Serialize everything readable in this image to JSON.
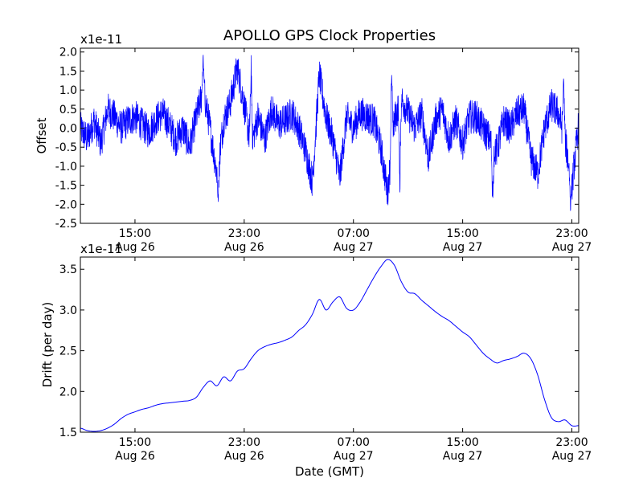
{
  "figure": {
    "title": "APOLLO GPS Clock Properties",
    "xlabel": "Date (GMT)"
  },
  "chart_data": [
    {
      "type": "line",
      "ylabel": "Offset",
      "scale_label": "x1e-11",
      "ylim": [
        -2.5,
        2.1
      ],
      "yticks": [
        -2.5,
        -2.0,
        -1.5,
        -1.0,
        -0.5,
        0.0,
        0.5,
        1.0,
        1.5,
        2.0
      ],
      "ytick_labels": [
        "-2.5",
        "-2.0",
        "-1.5",
        "-1.0",
        "-0.5",
        "0.0",
        "0.5",
        "1.0",
        "1.5",
        "2.0"
      ],
      "xlim": [
        "Aug 26 11:00",
        "Aug 27 23:30"
      ],
      "xtick_hours": [
        15,
        23,
        31,
        39,
        47
      ],
      "xticks": [
        {
          "time": "15:00",
          "date": "Aug 26"
        },
        {
          "time": "23:00",
          "date": "Aug 26"
        },
        {
          "time": "07:00",
          "date": "Aug 27"
        },
        {
          "time": "15:00",
          "date": "Aug 27"
        },
        {
          "time": "23:00",
          "date": "Aug 27"
        }
      ],
      "grid": false,
      "series": [
        {
          "color": "#0000ff",
          "style": "noisy",
          "x_hours": [
            11,
            11.5,
            12,
            12.5,
            13,
            13.5,
            14,
            14.5,
            15,
            15.5,
            16,
            16.5,
            17,
            17.5,
            18,
            18.5,
            19,
            19.5,
            20,
            20.5,
            21,
            21.5,
            22,
            22.5,
            23,
            23.5,
            24,
            24.5,
            25,
            25.5,
            26,
            26.5,
            27,
            27.5,
            28,
            28.5,
            29,
            29.5,
            30,
            30.5,
            31,
            31.5,
            32,
            32.5,
            33,
            33.5,
            34,
            34.5,
            35,
            35.5,
            36,
            36.5,
            37,
            37.5,
            38,
            38.5,
            39,
            39.5,
            40,
            40.5,
            41,
            41.5,
            42,
            42.5,
            43,
            43.5,
            44,
            44.5,
            45,
            45.5,
            46,
            46.5,
            47,
            47.5
          ],
          "values": [
            0.0,
            -0.3,
            0.2,
            -0.4,
            0.5,
            0.3,
            0.0,
            0.2,
            0.3,
            0.1,
            -0.1,
            0.2,
            0.4,
            0.1,
            -0.3,
            0.0,
            -0.5,
            0.3,
            1.0,
            0.0,
            -1.2,
            0.2,
            0.7,
            1.6,
            0.6,
            -0.5,
            0.3,
            -0.3,
            0.5,
            0.1,
            0.2,
            0.4,
            0.0,
            -0.6,
            -1.4,
            1.4,
            0.3,
            -0.3,
            -1.3,
            0.3,
            0.0,
            0.4,
            0.3,
            0.2,
            -0.5,
            -1.7,
            0.2,
            0.8,
            0.4,
            0.0,
            0.4,
            -0.8,
            0.2,
            0.5,
            -0.3,
            0.2,
            -0.4,
            0.3,
            0.3,
            0.0,
            -0.3,
            -0.6,
            0.2,
            0.0,
            0.4,
            0.5,
            -0.8,
            -1.2,
            0.0,
            0.6,
            0.4,
            -0.3,
            -1.5,
            0.1
          ],
          "noise": 0.45,
          "spikes": [
            {
              "x_hours": 20.0,
              "value": 2.0
            },
            {
              "x_hours": 21.1,
              "value": -2.0
            },
            {
              "x_hours": 23.5,
              "value": 2.1
            },
            {
              "x_hours": 33.8,
              "value": 1.8
            },
            {
              "x_hours": 34.4,
              "value": -1.9
            },
            {
              "x_hours": 41.2,
              "value": -2.2
            },
            {
              "x_hours": 46.4,
              "value": 1.5
            },
            {
              "x_hours": 46.9,
              "value": -2.2
            }
          ]
        }
      ]
    },
    {
      "type": "line",
      "ylabel": "Drift (per day)",
      "scale_label": "x1e-11",
      "ylim": [
        1.5,
        3.65
      ],
      "yticks": [
        1.5,
        2.0,
        2.5,
        3.0,
        3.5
      ],
      "ytick_labels": [
        "1.5",
        "2.0",
        "2.5",
        "3.0",
        "3.5"
      ],
      "xlim": [
        "Aug 26 11:00",
        "Aug 27 23:30"
      ],
      "xtick_hours": [
        15,
        23,
        31,
        39,
        47
      ],
      "xticks": [
        {
          "time": "15:00",
          "date": "Aug 26"
        },
        {
          "time": "23:00",
          "date": "Aug 26"
        },
        {
          "time": "07:00",
          "date": "Aug 27"
        },
        {
          "time": "15:00",
          "date": "Aug 27"
        },
        {
          "time": "23:00",
          "date": "Aug 27"
        }
      ],
      "grid": false,
      "series": [
        {
          "color": "#0000ff",
          "style": "smooth",
          "x_hours": [
            11,
            11.5,
            12,
            12.5,
            13,
            13.5,
            14,
            14.5,
            15,
            15.5,
            16,
            16.5,
            17,
            17.5,
            18,
            18.5,
            19,
            19.5,
            20,
            20.5,
            21,
            21.5,
            22,
            22.5,
            23,
            23.5,
            24,
            24.5,
            25,
            25.5,
            26,
            26.5,
            27,
            27.5,
            28,
            28.5,
            29,
            29.5,
            30,
            30.5,
            31,
            31.5,
            32,
            32.5,
            33,
            33.5,
            34,
            34.5,
            35,
            35.5,
            36,
            36.5,
            37,
            37.5,
            38,
            38.5,
            39,
            39.5,
            40,
            40.5,
            41,
            41.5,
            42,
            42.5,
            43,
            43.5,
            44,
            44.5,
            45,
            45.5,
            46,
            46.5,
            47,
            47.5
          ],
          "values": [
            1.55,
            1.52,
            1.51,
            1.52,
            1.55,
            1.6,
            1.67,
            1.72,
            1.75,
            1.78,
            1.8,
            1.83,
            1.85,
            1.86,
            1.87,
            1.88,
            1.89,
            1.93,
            2.05,
            2.13,
            2.07,
            2.18,
            2.13,
            2.25,
            2.28,
            2.4,
            2.5,
            2.55,
            2.58,
            2.6,
            2.63,
            2.67,
            2.75,
            2.82,
            2.95,
            3.13,
            3.0,
            3.1,
            3.16,
            3.02,
            3.0,
            3.1,
            3.25,
            3.4,
            3.53,
            3.62,
            3.55,
            3.35,
            3.22,
            3.2,
            3.12,
            3.05,
            2.98,
            2.92,
            2.87,
            2.8,
            2.73,
            2.67,
            2.57,
            2.47,
            2.4,
            2.35,
            2.38,
            2.4,
            2.43,
            2.47,
            2.4,
            2.2,
            1.9,
            1.68,
            1.63,
            1.65,
            1.58,
            1.58
          ]
        }
      ]
    }
  ]
}
